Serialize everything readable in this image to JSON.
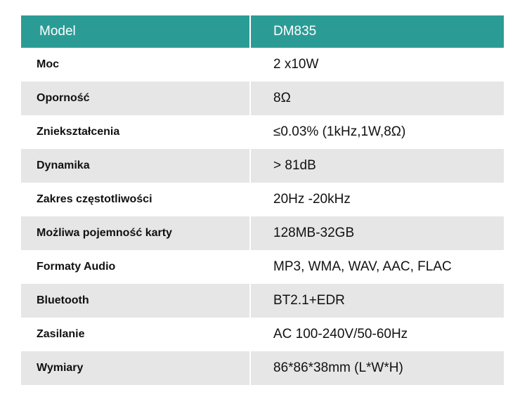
{
  "header": {
    "columns": [
      "Model",
      "DM835"
    ]
  },
  "table": {
    "rows": [
      [
        "Moc",
        "2 x10W"
      ],
      [
        "Oporność",
        "8Ω"
      ],
      [
        "Zniekształcenia",
        "≤0.03% (1kHz,1W,8Ω)"
      ],
      [
        "Dynamika",
        "> 81dB"
      ],
      [
        "Zakres częstotliwości",
        "20Hz -20kHz"
      ],
      [
        "Możliwa pojemność karty",
        "128MB-32GB"
      ],
      [
        "Formaty Audio",
        "MP3, WMA, WAV, AAC, FLAC"
      ],
      [
        "Bluetooth",
        "BT2.1+EDR"
      ],
      [
        "Zasilanie",
        "AC 100-240V/50-60Hz"
      ],
      [
        "Wymiary",
        "86*86*38mm (L*W*H)"
      ]
    ]
  }
}
